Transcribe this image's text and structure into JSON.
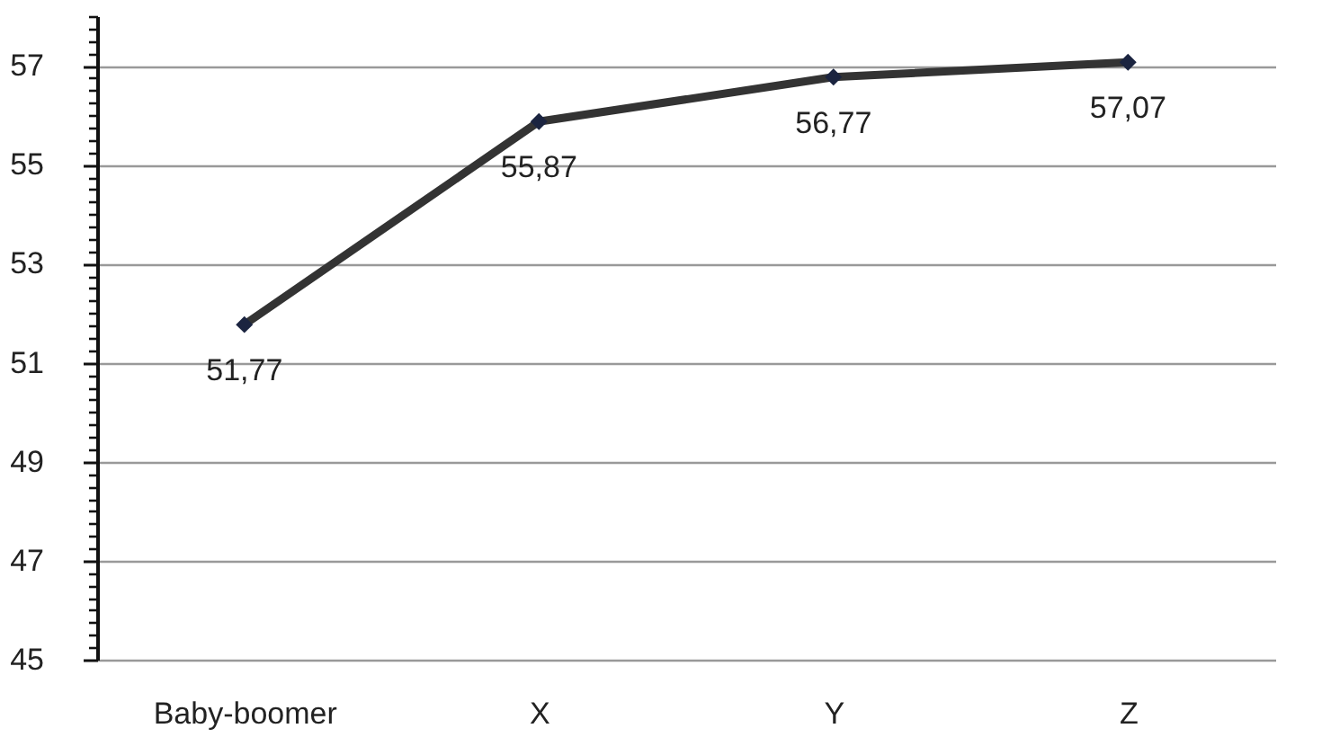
{
  "chart_data": {
    "type": "line",
    "categories": [
      "Baby-boomer",
      "X",
      "Y",
      "Z"
    ],
    "series": [
      {
        "color": "#333333",
        "values": [
          51.77,
          55.87,
          56.77,
          57.07
        ],
        "value_labels": [
          "51,77",
          "55,87",
          "56,77",
          "57,07"
        ]
      }
    ],
    "ylim": [
      45,
      58
    ],
    "yticks": [
      45,
      {
        "value": 45.25,
        "label": null
      },
      {
        "value": 45.5,
        "label": null
      },
      {
        "value": 45.75,
        "label": null
      },
      {
        "value": 46,
        "label": null
      },
      {
        "value": 46.25,
        "label": null
      },
      {
        "value": 46.5,
        "label": null
      },
      {
        "value": 46.75,
        "label": null
      },
      47,
      {
        "value": 47.25,
        "label": null
      },
      {
        "value": 47.5,
        "label": null
      },
      {
        "value": 47.75,
        "label": null
      },
      {
        "value": 48,
        "label": null
      },
      {
        "value": 48.25,
        "label": null
      },
      {
        "value": 48.5,
        "label": null
      },
      {
        "value": 48.75,
        "label": null
      },
      49,
      {
        "value": 49.25,
        "label": null
      },
      {
        "value": 49.5,
        "label": null
      },
      {
        "value": 49.75,
        "label": null
      },
      {
        "value": 50,
        "label": null
      },
      {
        "value": 50.25,
        "label": null
      },
      {
        "value": 50.5,
        "label": null
      },
      {
        "value": 50.75,
        "label": null
      },
      51,
      {
        "value": 51.25,
        "label": null
      },
      {
        "value": 51.5,
        "label": null
      },
      {
        "value": 51.75,
        "label": null
      },
      {
        "value": 52,
        "label": null
      },
      {
        "value": 52.25,
        "label": null
      },
      {
        "value": 52.5,
        "label": null
      },
      {
        "value": 52.75,
        "label": null
      },
      53,
      {
        "value": 53.25,
        "label": null
      },
      {
        "value": 53.5,
        "label": null
      },
      {
        "value": 53.75,
        "label": null
      },
      {
        "value": 54,
        "label": null
      },
      {
        "value": 54.25,
        "label": null
      },
      {
        "value": 54.5,
        "label": null
      },
      {
        "value": 54.75,
        "label": null
      },
      55,
      {
        "value": 55.25,
        "label": null
      },
      {
        "value": 55.5,
        "label": null
      },
      {
        "value": 55.75,
        "label": null
      },
      {
        "value": 56,
        "label": null
      },
      {
        "value": 56.25,
        "label": null
      },
      {
        "value": 56.5,
        "label": null
      },
      {
        "value": 56.75,
        "label": null
      },
      57,
      {
        "value": 57.25,
        "label": null
      },
      {
        "value": 57.5,
        "label": null
      },
      {
        "value": 57.75,
        "label": null
      },
      {
        "value": 58,
        "label": null
      }
    ],
    "grid": "y",
    "marker": "diamond",
    "line_style": "solid"
  }
}
